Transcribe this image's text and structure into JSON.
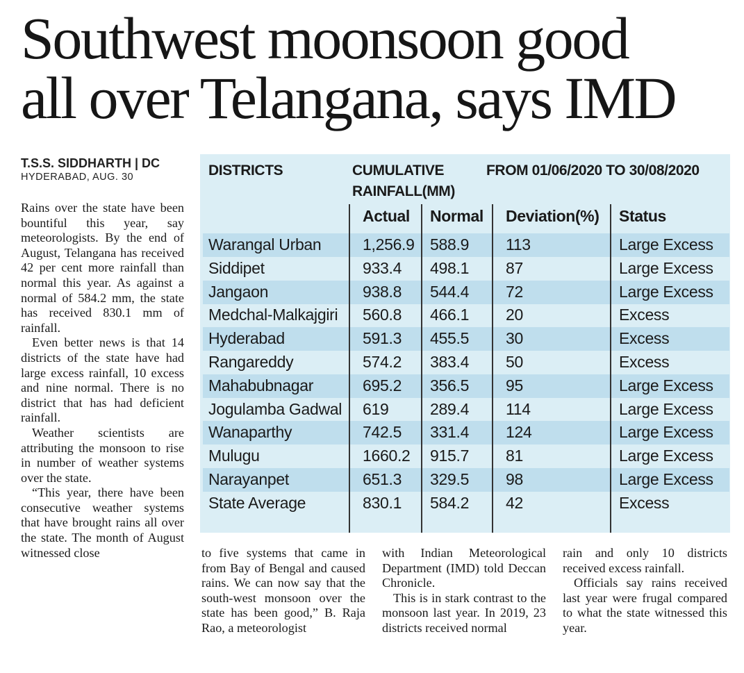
{
  "headline": {
    "line1": "Southwest moonsoon good",
    "line2": "all over Telangana, says IMD"
  },
  "byline": "T.S.S. SIDDHARTH | DC",
  "dateline": "HYDERABAD, AUG. 30",
  "table": {
    "header_districts": "DISTRICTS",
    "header_cumulative": "CUMULATIVE",
    "header_rainfall_mm": "RAINFALL(MM)",
    "header_period": "FROM 01/06/2020 TO 30/08/2020",
    "columns": [
      "Actual",
      "Normal",
      "Deviation(%)",
      "Status"
    ],
    "rows": [
      {
        "district": "Warangal Urban",
        "actual": "1,256.9",
        "normal": "588.9",
        "deviation": "113",
        "status": "Large Excess"
      },
      {
        "district": "Siddipet",
        "actual": "933.4",
        "normal": "498.1",
        "deviation": "87",
        "status": "Large Excess"
      },
      {
        "district": "Jangaon",
        "actual": "938.8",
        "normal": "544.4",
        "deviation": "72",
        "status": "Large Excess"
      },
      {
        "district": "Medchal-Malkajgiri",
        "actual": "560.8",
        "normal": "466.1",
        "deviation": "20",
        "status": "Excess"
      },
      {
        "district": "Hyderabad",
        "actual": "591.3",
        "normal": "455.5",
        "deviation": "30",
        "status": "Excess"
      },
      {
        "district": "Rangareddy",
        "actual": "574.2",
        "normal": "383.4",
        "deviation": "50",
        "status": "Excess"
      },
      {
        "district": "Mahabubnagar",
        "actual": "695.2",
        "normal": "356.5",
        "deviation": "95",
        "status": "Large Excess"
      },
      {
        "district": "Jogulamba Gadwal",
        "actual": "619",
        "normal": "289.4",
        "deviation": "114",
        "status": "Large Excess"
      },
      {
        "district": "Wanaparthy",
        "actual": "742.5",
        "normal": "331.4",
        "deviation": "124",
        "status": "Large Excess"
      },
      {
        "district": "Mulugu",
        "actual": "1660.2",
        "normal": "915.7",
        "deviation": "81",
        "status": "Large Excess"
      },
      {
        "district": "Narayanpet",
        "actual": "651.3",
        "normal": "329.5",
        "deviation": "98",
        "status": "Large Excess"
      },
      {
        "district": "State Average",
        "actual": "830.1",
        "normal": "584.2",
        "deviation": "42",
        "status": "Excess"
      }
    ]
  },
  "body": {
    "col1_p1": "Rains over the state have been bountiful this year, say meteorolo­gists. By the end of August, Telangana has received 42 per cent more rainfall than nor­mal this year. As against a normal of 584.2 mm, the state has received 830.1 mm of rainfall.",
    "col1_p2": "Even better news is that 14 districts of the state have had large excess rainfall, 10 excess and nine normal. There is no district that has had deficient rain­fall.",
    "col1_p3": "Weather scientists are attributing the mon­soon to rise in number of weather systems over the state.",
    "col1_p4": "“This year, there have been consecutive weath­er systems that have brought rains all over the state. The month of August witnessed close",
    "col2_p1": "to five systems that came in from Bay of Bengal and caused rains. We can now say that the south-west monsoon over the state has been good,” B. Raja Rao, a meteorologist",
    "col3_p1": "with Indian Meteorological Department (IMD) told Deccan Chronicle.",
    "col3_p2": "This is in stark con­trast to the monsoon last year. In 2019, 23 dis­tricts received normal",
    "col4_p1": "rain and only 10 dis­tricts received excess rainfall.",
    "col4_p2": "Officials say rains received last year were frugal compared to what the state wit­nessed this year."
  },
  "colors": {
    "table_bg": "#dbeef5",
    "row_shade": "#bfdeed",
    "ink": "#1a1a1a"
  }
}
